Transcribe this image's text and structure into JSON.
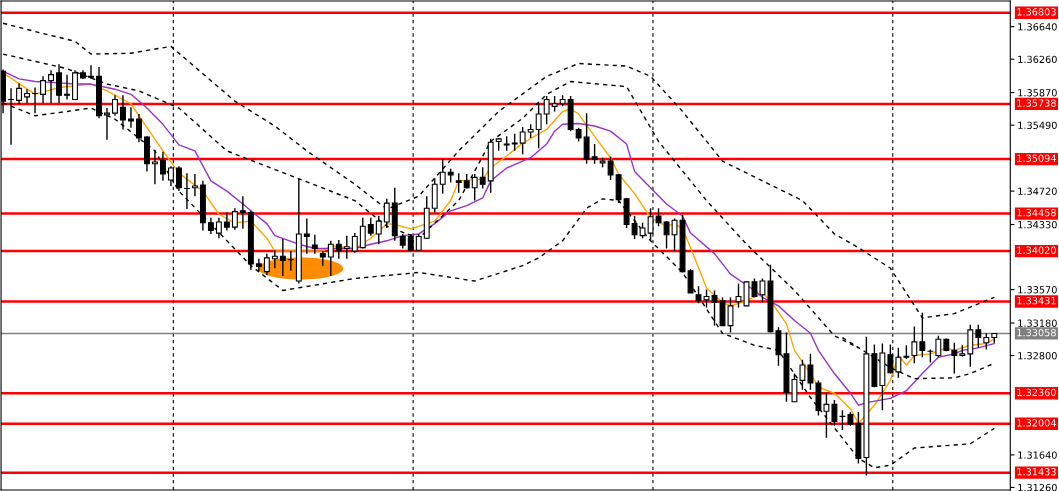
{
  "chart_data": {
    "type": "candlestick",
    "categories": [
      null,
      null,
      null,
      null,
      null,
      null,
      null,
      null,
      null,
      null,
      null,
      null,
      null,
      null,
      null,
      null,
      null,
      null,
      null,
      null,
      null,
      null,
      null,
      null,
      null,
      null,
      null,
      null,
      null,
      null,
      null,
      null,
      null,
      null,
      null,
      null,
      null,
      null,
      null,
      null,
      null,
      null,
      null,
      null,
      null,
      null,
      null,
      null,
      null,
      null,
      null,
      null,
      null,
      null,
      null,
      null,
      null,
      null,
      null,
      null,
      null,
      null,
      null,
      null,
      null,
      null,
      null,
      null,
      null,
      null,
      null,
      null,
      null,
      null,
      null,
      null,
      null,
      null,
      null,
      null,
      null,
      null,
      null,
      null,
      null,
      null,
      null,
      null,
      null,
      null,
      null,
      null,
      null,
      null,
      null,
      null,
      null,
      null,
      null,
      null,
      null,
      null,
      null,
      null,
      null,
      null,
      null,
      null,
      null,
      null,
      null,
      null,
      null,
      null,
      null,
      null,
      null,
      null,
      null,
      null,
      null,
      null,
      null,
      null,
      null
    ],
    "ohlc": [
      [
        1.3612,
        1.3614,
        1.3563,
        1.3577
      ],
      [
        1.3579,
        1.3592,
        1.3526,
        1.3579
      ],
      [
        1.3578,
        1.3598,
        1.3574,
        1.3592
      ],
      [
        1.3582,
        1.3591,
        1.3575,
        1.3586
      ],
      [
        1.3586,
        1.3593,
        1.3563,
        1.3586
      ],
      [
        1.3585,
        1.3606,
        1.3575,
        1.3601
      ],
      [
        1.3601,
        1.3613,
        1.3575,
        1.3608
      ],
      [
        1.361,
        1.362,
        1.3575,
        1.3584
      ],
      [
        1.3585,
        1.3608,
        1.3579,
        1.3584
      ],
      [
        1.3579,
        1.3613,
        1.3579,
        1.361
      ],
      [
        1.361,
        1.3613,
        1.3603,
        1.3604
      ],
      [
        1.3606,
        1.3619,
        1.3603,
        1.3605
      ],
      [
        1.3606,
        1.3617,
        1.3557,
        1.356
      ],
      [
        1.3561,
        1.3569,
        1.3532,
        1.3563
      ],
      [
        1.3563,
        1.3584,
        1.356,
        1.3579
      ],
      [
        1.357,
        1.3584,
        1.3544,
        1.3555
      ],
      [
        1.3556,
        1.357,
        1.3546,
        1.3554
      ],
      [
        1.3556,
        1.3562,
        1.3529,
        1.3534
      ],
      [
        1.3535,
        1.3536,
        1.3495,
        1.3504
      ],
      [
        1.3504,
        1.352,
        1.348,
        1.3506
      ],
      [
        1.3508,
        1.3518,
        1.3484,
        1.3492
      ],
      [
        1.3485,
        1.3501,
        1.3478,
        1.3499
      ],
      [
        1.3499,
        1.3501,
        1.3472,
        1.3476
      ],
      [
        1.3475,
        1.3493,
        1.3451,
        1.3475
      ],
      [
        1.3476,
        1.3492,
        1.3466,
        1.3478
      ],
      [
        1.3479,
        1.3484,
        1.3426,
        1.3435
      ],
      [
        1.3435,
        1.3441,
        1.3422,
        1.3426
      ],
      [
        1.3423,
        1.3441,
        1.3417,
        1.3436
      ],
      [
        1.3436,
        1.3447,
        1.3426,
        1.343
      ],
      [
        1.343,
        1.3452,
        1.3427,
        1.3448
      ],
      [
        1.3449,
        1.3466,
        1.3428,
        1.3447
      ],
      [
        1.3447,
        1.3449,
        1.338,
        1.3387
      ],
      [
        1.3387,
        1.3393,
        1.3378,
        1.3384
      ],
      [
        1.3378,
        1.3399,
        1.3374,
        1.3394
      ],
      [
        1.3393,
        1.3403,
        1.3382,
        1.3396
      ],
      [
        1.3396,
        1.3416,
        1.3373,
        1.3391
      ],
      [
        1.3392,
        1.3402,
        1.3379,
        1.3392
      ],
      [
        1.3367,
        1.3486,
        1.3364,
        1.3422
      ],
      [
        1.3422,
        1.344,
        1.3399,
        1.3419
      ],
      [
        1.3409,
        1.3421,
        1.3399,
        1.3405
      ],
      [
        1.3399,
        1.3402,
        1.3385,
        1.3395
      ],
      [
        1.3395,
        1.3414,
        1.3373,
        1.341
      ],
      [
        1.341,
        1.3415,
        1.3393,
        1.3402
      ],
      [
        1.3405,
        1.342,
        1.3393,
        1.3407
      ],
      [
        1.3402,
        1.3423,
        1.34,
        1.3419
      ],
      [
        1.3406,
        1.3441,
        1.3405,
        1.3431
      ],
      [
        1.3433,
        1.3441,
        1.342,
        1.3423
      ],
      [
        1.3422,
        1.3443,
        1.341,
        1.3437
      ],
      [
        1.3436,
        1.3463,
        1.3429,
        1.3458
      ],
      [
        1.3458,
        1.3476,
        1.3414,
        1.342
      ],
      [
        1.3419,
        1.3422,
        1.3405,
        1.3409
      ],
      [
        1.3419,
        1.3422,
        1.3403,
        1.3403
      ],
      [
        1.3403,
        1.3422,
        1.3402,
        1.3419
      ],
      [
        1.3417,
        1.3466,
        1.3416,
        1.3452
      ],
      [
        1.3452,
        1.3487,
        1.3447,
        1.348
      ],
      [
        1.348,
        1.3509,
        1.3469,
        1.3494
      ],
      [
        1.3494,
        1.3498,
        1.3482,
        1.3491
      ],
      [
        1.3484,
        1.3493,
        1.347,
        1.3482
      ],
      [
        1.3484,
        1.3492,
        1.3475,
        1.3476
      ],
      [
        1.3476,
        1.3492,
        1.3461,
        1.3488
      ],
      [
        1.3488,
        1.35,
        1.3475,
        1.348
      ],
      [
        1.3484,
        1.3533,
        1.347,
        1.3529
      ],
      [
        1.353,
        1.3534,
        1.3519,
        1.3533
      ],
      [
        1.3527,
        1.3536,
        1.3519,
        1.3526
      ],
      [
        1.3528,
        1.3539,
        1.3519,
        1.3527
      ],
      [
        1.3528,
        1.3547,
        1.3515,
        1.3541
      ],
      [
        1.3541,
        1.355,
        1.3534,
        1.3544
      ],
      [
        1.3544,
        1.3574,
        1.3522,
        1.3562
      ],
      [
        1.3562,
        1.3583,
        1.355,
        1.3579
      ],
      [
        1.3571,
        1.3583,
        1.3565,
        1.3574
      ],
      [
        1.3574,
        1.3584,
        1.3571,
        1.3579
      ],
      [
        1.3579,
        1.3583,
        1.3542,
        1.3544
      ],
      [
        1.3544,
        1.3546,
        1.353,
        1.3534
      ],
      [
        1.3535,
        1.3563,
        1.3504,
        1.3509
      ],
      [
        1.3512,
        1.3527,
        1.3504,
        1.3509
      ],
      [
        1.3505,
        1.3511,
        1.35,
        1.3507
      ],
      [
        1.3507,
        1.3512,
        1.3485,
        1.3491
      ],
      [
        1.3491,
        1.3492,
        1.3458,
        1.3462
      ],
      [
        1.3463,
        1.3464,
        1.3429,
        1.3433
      ],
      [
        1.3434,
        1.3443,
        1.3416,
        1.3421
      ],
      [
        1.342,
        1.3435,
        1.3417,
        1.3429
      ],
      [
        1.3423,
        1.3452,
        1.3414,
        1.3442
      ],
      [
        1.3443,
        1.3452,
        1.3431,
        1.3435
      ],
      [
        1.3436,
        1.3437,
        1.3405,
        1.3421
      ],
      [
        1.3421,
        1.344,
        1.3402,
        1.3438
      ],
      [
        1.3438,
        1.3444,
        1.3377,
        1.3378
      ],
      [
        1.3379,
        1.3381,
        1.3353,
        1.3353
      ],
      [
        1.3351,
        1.3361,
        1.3341,
        1.3344
      ],
      [
        1.3345,
        1.3357,
        1.3336,
        1.3349
      ],
      [
        1.335,
        1.3356,
        1.3315,
        1.3342
      ],
      [
        1.3344,
        1.3348,
        1.3315,
        1.3315
      ],
      [
        1.3315,
        1.3348,
        1.3307,
        1.3338
      ],
      [
        1.3343,
        1.3364,
        1.3336,
        1.3349
      ],
      [
        1.3338,
        1.3367,
        1.3338,
        1.3366
      ],
      [
        1.3366,
        1.337,
        1.3348,
        1.3349
      ],
      [
        1.3351,
        1.337,
        1.3342,
        1.3367
      ],
      [
        1.3367,
        1.3386,
        1.3307,
        1.3308
      ],
      [
        1.3309,
        1.3313,
        1.3268,
        1.3281
      ],
      [
        1.3282,
        1.3307,
        1.3226,
        1.3237
      ],
      [
        1.3226,
        1.3259,
        1.3226,
        1.3252
      ],
      [
        1.3251,
        1.3275,
        1.324,
        1.3269
      ],
      [
        1.3269,
        1.3282,
        1.324,
        1.3248
      ],
      [
        1.3248,
        1.3251,
        1.321,
        1.3216
      ],
      [
        1.3215,
        1.3237,
        1.3184,
        1.3223
      ],
      [
        1.3223,
        1.3228,
        1.3198,
        1.3203
      ],
      [
        1.3209,
        1.3216,
        1.3193,
        1.3209
      ],
      [
        1.3211,
        1.3214,
        1.3198,
        1.32
      ],
      [
        1.3201,
        1.3214,
        1.3154,
        1.316
      ],
      [
        1.3161,
        1.3302,
        1.314,
        1.3282
      ],
      [
        1.3282,
        1.3293,
        1.3243,
        1.3244
      ],
      [
        1.3245,
        1.3294,
        1.3216,
        1.3283
      ],
      [
        1.3281,
        1.3293,
        1.3259,
        1.326
      ],
      [
        1.3261,
        1.3289,
        1.3254,
        1.3278
      ],
      [
        1.3279,
        1.3292,
        1.3276,
        1.3278
      ],
      [
        1.328,
        1.3314,
        1.3271,
        1.3296
      ],
      [
        1.3296,
        1.333,
        1.3278,
        1.3286
      ],
      [
        1.3285,
        1.3287,
        1.3272,
        1.3285
      ],
      [
        1.328,
        1.3303,
        1.3278,
        1.3299
      ],
      [
        1.3299,
        1.33,
        1.3285,
        1.3286
      ],
      [
        1.3286,
        1.3295,
        1.3259,
        1.328
      ],
      [
        1.328,
        1.3292,
        1.3279,
        1.3282
      ],
      [
        1.3282,
        1.3316,
        1.3267,
        1.331
      ],
      [
        1.331,
        1.3316,
        1.3289,
        1.3301
      ],
      [
        1.3295,
        1.3306,
        1.3287,
        1.3301
      ],
      [
        1.3301,
        1.3306,
        1.3295,
        1.33058
      ]
    ],
    "series": [
      {
        "type": "line",
        "color": "#ffa500",
        "line_style": "solid",
        "values": [
          1.361,
          null,
          null,
          null,
          1.3585,
          null,
          null,
          1.3593,
          null,
          null,
          null,
          1.3597,
          null,
          1.3589,
          null,
          null,
          1.3574,
          null,
          1.3546,
          null,
          1.3519,
          null,
          1.3493,
          null,
          null,
          1.3472,
          null,
          1.3445,
          null,
          1.3435,
          null,
          1.3437,
          null,
          1.3417,
          1.3402,
          null,
          null,
          null,
          1.3402,
          null,
          1.3402,
          1.3408,
          null,
          null,
          1.3405,
          null,
          1.3417,
          null,
          1.3434,
          1.3433,
          null,
          1.3428,
          null,
          null,
          1.3437,
          null,
          1.3461,
          1.3484,
          null,
          null,
          1.3486,
          1.3499,
          null,
          1.3513,
          null,
          1.3528,
          null,
          null,
          1.3544,
          null,
          1.3565,
          1.3568,
          1.3562,
          null,
          1.3536,
          null,
          1.3511,
          1.3492,
          null,
          1.3469,
          null,
          1.3441,
          null,
          1.3431,
          1.3434,
          1.3428,
          1.3406,
          null,
          1.3359,
          null,
          1.3342,
          1.3338,
          null,
          1.3344,
          null,
          1.3353,
          1.3344,
          null,
          1.3317,
          1.3286,
          null,
          1.3259,
          1.3243,
          null,
          1.3236,
          null,
          1.3218,
          1.3201,
          null,
          1.3222,
          1.3236,
          1.3251,
          1.328,
          1.3269,
          1.328,
          null,
          1.3282,
          null,
          1.3289,
          1.3286,
          null,
          1.3292,
          null,
          1.3294,
          1.33
        ]
      },
      {
        "type": "line",
        "color": "#9932cc",
        "line_style": "solid",
        "values": [
          1.3612,
          null,
          1.3603,
          null,
          1.36,
          null,
          1.3599,
          null,
          null,
          1.3597,
          null,
          1.3597,
          null,
          null,
          1.3591,
          null,
          1.3585,
          null,
          1.3569,
          null,
          1.355,
          null,
          1.3526,
          null,
          1.3519,
          null,
          1.3484,
          null,
          1.3472,
          null,
          1.3457,
          1.3449,
          null,
          1.3434,
          1.342,
          null,
          null,
          1.341,
          null,
          1.3405,
          null,
          null,
          1.3405,
          null,
          1.3405,
          null,
          1.341,
          null,
          1.3414,
          null,
          1.342,
          null,
          1.3422,
          null,
          1.3434,
          null,
          1.3449,
          null,
          1.3455,
          null,
          1.3464,
          1.3484,
          null,
          1.3499,
          null,
          1.3507,
          1.3511,
          null,
          1.3527,
          1.3542,
          1.355,
          null,
          1.3551,
          null,
          1.3548,
          null,
          1.3542,
          null,
          1.3527,
          1.3495,
          null,
          1.3476,
          null,
          1.3457,
          null,
          1.3443,
          1.3423,
          null,
          null,
          1.3399,
          null,
          1.3375,
          null,
          null,
          1.3356,
          1.3348,
          null,
          1.3338,
          null,
          1.3321,
          null,
          1.3306,
          1.3286,
          null,
          1.3259,
          null,
          1.3236,
          1.3222,
          1.3225,
          null,
          null,
          1.323,
          null,
          1.3239,
          null,
          1.3259,
          null,
          1.3278,
          null,
          1.3282,
          1.3286,
          null,
          1.3289,
          null,
          1.3294
        ]
      },
      {
        "type": "line",
        "color": "#000000",
        "line_style": "dashed",
        "values": [
          1.3668,
          null,
          null,
          null,
          null,
          1.3656,
          null,
          null,
          null,
          1.3647,
          null,
          1.3632,
          null,
          null,
          null,
          null,
          1.3633,
          null,
          null,
          null,
          null,
          1.3641,
          null,
          null,
          null,
          null,
          null,
          null,
          null,
          1.3577,
          null,
          null,
          null,
          null,
          1.3548,
          null,
          null,
          null,
          1.3519,
          null,
          null,
          null,
          null,
          null,
          1.348,
          null,
          null,
          null,
          1.3451,
          null,
          null,
          null,
          1.3466,
          null,
          null,
          null,
          null,
          1.3519,
          null,
          null,
          null,
          null,
          1.3565,
          null,
          null,
          null,
          null,
          null,
          1.3606,
          null,
          null,
          null,
          1.3621,
          null,
          null,
          null,
          null,
          null,
          1.3618,
          null,
          null,
          1.3606,
          null,
          null,
          null,
          1.3565,
          null,
          null,
          null,
          null,
          1.3507,
          null,
          null,
          null,
          null,
          1.3484,
          null,
          null,
          null,
          null,
          1.3461,
          null,
          null,
          null,
          1.3422,
          null,
          null,
          1.3406,
          null,
          null,
          null,
          1.3382,
          null,
          null,
          null,
          1.3324,
          null,
          null,
          null,
          1.3329,
          null,
          null,
          null,
          null,
          1.3348
        ]
      },
      {
        "type": "line",
        "color": "#000000",
        "line_style": "dashed",
        "values": [
          1.3632,
          null,
          null,
          null,
          null,
          null,
          null,
          null,
          1.3615,
          null,
          null,
          null,
          null,
          1.3597,
          null,
          null,
          null,
          1.3589,
          null,
          null,
          null,
          null,
          1.3569,
          null,
          null,
          null,
          null,
          null,
          1.3519,
          null,
          null,
          null,
          null,
          null,
          null,
          null,
          1.349,
          null,
          null,
          null,
          null,
          null,
          null,
          null,
          1.3461,
          null,
          null,
          null,
          1.3431,
          null,
          null,
          null,
          1.3417,
          null,
          null,
          null,
          null,
          1.3461,
          null,
          null,
          null,
          1.353,
          null,
          null,
          null,
          1.3557,
          null,
          null,
          1.3585,
          null,
          null,
          1.36,
          null,
          null,
          null,
          null,
          null,
          null,
          1.3594,
          null,
          null,
          null,
          1.353,
          null,
          null,
          null,
          null,
          null,
          1.3461,
          null,
          null,
          null,
          null,
          1.341,
          null,
          null,
          null,
          null,
          null,
          1.3356,
          null,
          null,
          null,
          null,
          1.3303,
          null,
          null,
          1.3289,
          null,
          null,
          null,
          null,
          null,
          null,
          null,
          null,
          null,
          null,
          null,
          null,
          null,
          null,
          null,
          null,
          null
        ]
      },
      {
        "type": "line",
        "color": "#000000",
        "line_style": "dashed",
        "values": [
          1.3575,
          null,
          null,
          null,
          1.356,
          null,
          null,
          null,
          1.3565,
          null,
          null,
          1.3569,
          null,
          null,
          1.3556,
          null,
          null,
          null,
          null,
          1.3519,
          null,
          null,
          1.3472,
          null,
          null,
          null,
          null,
          null,
          null,
          null,
          null,
          1.3385,
          null,
          null,
          null,
          1.3356,
          null,
          null,
          null,
          null,
          null,
          null,
          null,
          null,
          1.337,
          null,
          null,
          null,
          null,
          null,
          null,
          null,
          1.3377,
          null,
          null,
          null,
          null,
          null,
          null,
          1.3367,
          null,
          null,
          null,
          null,
          null,
          1.3385,
          null,
          1.3394,
          null,
          null,
          1.3414,
          null,
          null,
          1.3452,
          null,
          1.3463,
          null,
          1.3461,
          null,
          null,
          null,
          1.3414,
          null,
          null,
          null,
          1.3377,
          null,
          null,
          null,
          null,
          1.3306,
          null,
          null,
          null,
          1.3292,
          null,
          null,
          1.3286,
          null,
          null,
          null,
          1.3231,
          null,
          null,
          null,
          null,
          null,
          1.316,
          null,
          1.3149,
          null,
          1.3152,
          null,
          null,
          1.3172,
          null,
          null,
          null,
          null,
          null,
          null,
          1.3177,
          null,
          null,
          1.3195
        ]
      },
      {
        "type": "line",
        "color": "#000000",
        "line_style": "dashed",
        "values": [
          null,
          null,
          null,
          null,
          null,
          null,
          null,
          null,
          null,
          null,
          null,
          null,
          null,
          null,
          null,
          null,
          null,
          null,
          null,
          null,
          null,
          null,
          null,
          null,
          null,
          null,
          null,
          null,
          null,
          null,
          null,
          null,
          null,
          null,
          null,
          null,
          null,
          null,
          null,
          null,
          null,
          null,
          null,
          null,
          null,
          null,
          null,
          null,
          null,
          null,
          null,
          null,
          null,
          null,
          null,
          null,
          null,
          null,
          null,
          null,
          null,
          null,
          null,
          null,
          null,
          null,
          null,
          null,
          null,
          null,
          null,
          null,
          null,
          null,
          null,
          null,
          null,
          null,
          null,
          null,
          null,
          null,
          null,
          null,
          null,
          null,
          null,
          null,
          null,
          null,
          null,
          null,
          null,
          null,
          null,
          null,
          null,
          null,
          null,
          null,
          null,
          null,
          null,
          null,
          null,
          1.3301,
          null,
          null,
          null,
          null,
          null,
          1.3266,
          null,
          null,
          1.3253,
          null,
          null,
          null,
          null,
          1.3254,
          null,
          1.3259,
          null,
          null,
          1.3271
        ]
      }
    ],
    "ylim": [
      1.3123,
      1.3694
    ],
    "yticks": [
      {
        "value": 1.3664,
        "label": "1.36640"
      },
      {
        "value": 1.3626,
        "label": "1.36260"
      },
      {
        "value": 1.3587,
        "label": "1.35870"
      },
      {
        "value": 1.3549,
        "label": "1.35490"
      },
      {
        "value": 1.3472,
        "label": "1.34720"
      },
      {
        "value": 1.3433,
        "label": "1.34330"
      },
      {
        "value": 1.3357,
        "label": "1.33570"
      },
      {
        "value": 1.3318,
        "label": "1.33180"
      },
      {
        "value": 1.328,
        "label": "1.32800"
      },
      {
        "value": 1.3164,
        "label": "1.31640"
      },
      {
        "value": 1.3126,
        "label": "1.31260"
      }
    ],
    "tick_labels": "y",
    "grid": false,
    "ref_lines": [
      {
        "axis": "y",
        "value": 1.36803,
        "label": "1.36803",
        "color": "#ff0000"
      },
      {
        "axis": "y",
        "value": 1.35738,
        "label": "1.35738",
        "color": "#ff0000"
      },
      {
        "axis": "y",
        "value": 1.35094,
        "label": "1.35094",
        "color": "#ff0000"
      },
      {
        "axis": "y",
        "value": 1.34458,
        "label": "1.34458",
        "color": "#ff0000"
      },
      {
        "axis": "y",
        "value": 1.3402,
        "label": "1.34020",
        "color": "#ff0000"
      },
      {
        "axis": "y",
        "value": 1.33431,
        "label": "1.33431",
        "color": "#ff0000"
      },
      {
        "axis": "y",
        "value": 1.33058,
        "label": "1.33058",
        "color": "#808080"
      },
      {
        "axis": "y",
        "value": 1.3236,
        "label": "1.32360",
        "color": "#ff0000"
      },
      {
        "axis": "y",
        "value": 1.32004,
        "label": "1.32004",
        "color": "#ff0000"
      },
      {
        "axis": "y",
        "value": 1.31433,
        "label": "1.31433",
        "color": "#ff0000"
      }
    ]
  }
}
